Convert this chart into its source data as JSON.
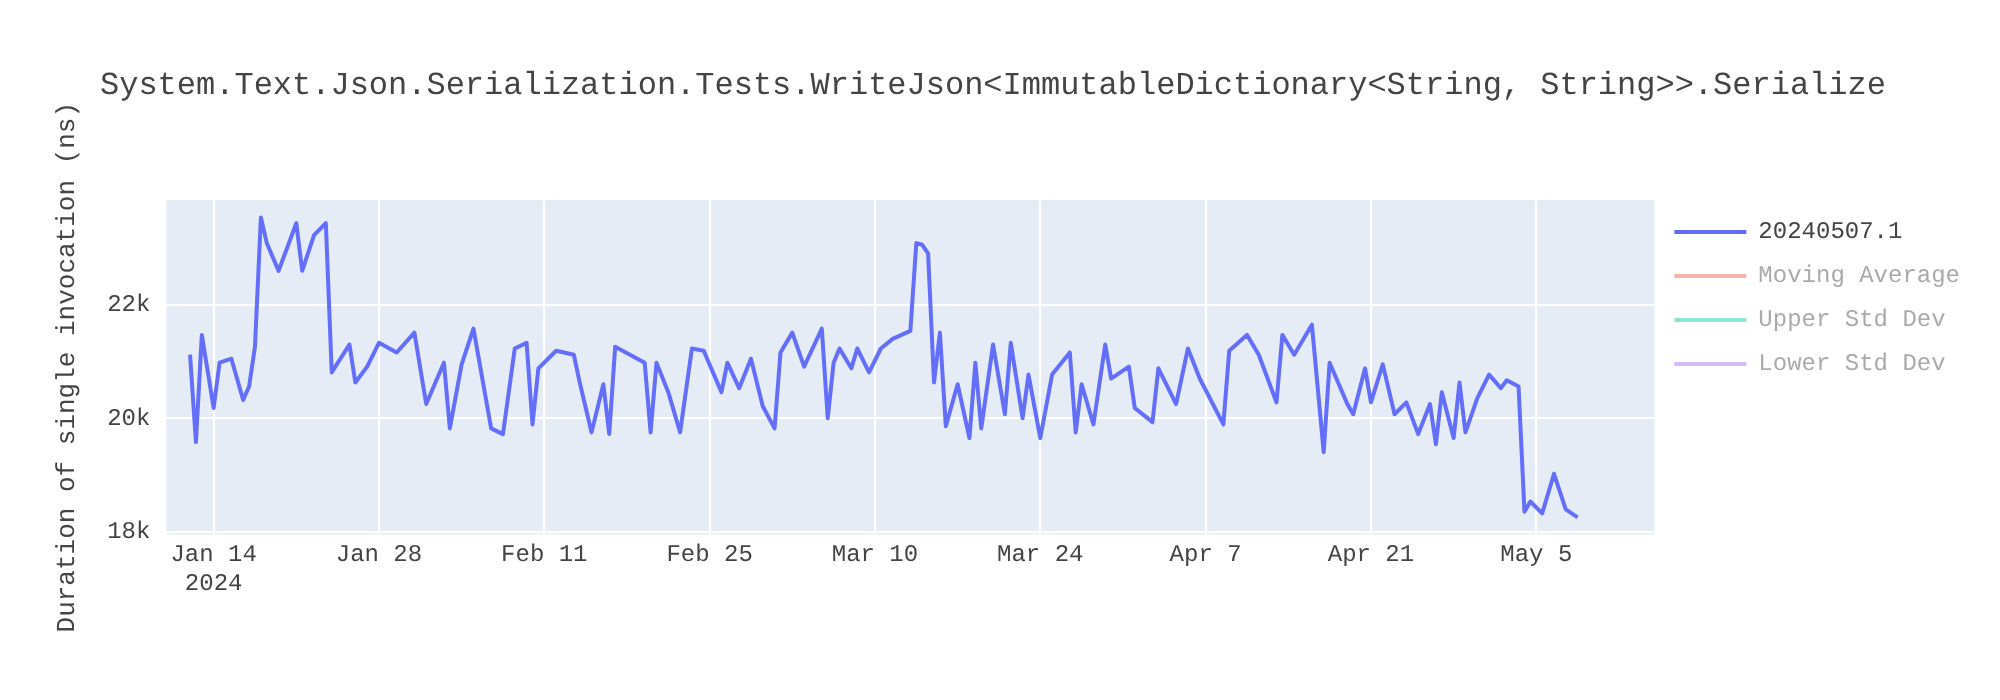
{
  "chart_data": {
    "type": "line",
    "title": "System.Text.Json.Serialization.Tests.WriteJson<ImmutableDictionary<String, String>>.Serialize",
    "ylabel": "Duration of single invocation (ns)",
    "xlim": [
      "2024-01-10",
      "2024-05-15"
    ],
    "xticks": [
      {
        "value": "2024-01-14",
        "label": "Jan 14\n2024"
      },
      {
        "value": "2024-01-28",
        "label": "Jan 28"
      },
      {
        "value": "2024-02-11",
        "label": "Feb 11"
      },
      {
        "value": "2024-02-25",
        "label": "Feb 25"
      },
      {
        "value": "2024-03-10",
        "label": "Mar 10"
      },
      {
        "value": "2024-03-24",
        "label": "Mar 24"
      },
      {
        "value": "2024-04-07",
        "label": "Apr 7"
      },
      {
        "value": "2024-04-21",
        "label": "Apr 21"
      },
      {
        "value": "2024-05-05",
        "label": "May 5"
      }
    ],
    "ylim": [
      17950,
      23850
    ],
    "yticks": [
      {
        "value": 18000,
        "label": "18k"
      },
      {
        "value": 20000,
        "label": "20k"
      },
      {
        "value": 22000,
        "label": "22k"
      }
    ],
    "grid": true,
    "legend": "top right",
    "line_style": "solid",
    "series": [
      {
        "name": "20240507.1",
        "color": "#636efa",
        "x": [
          "2024-01-12T00:00",
          "2024-01-12T12:00",
          "2024-01-13T00:00",
          "2024-01-14T00:00",
          "2024-01-14T12:00",
          "2024-01-15T12:00",
          "2024-01-16T12:00",
          "2024-01-17T00:00",
          "2024-01-17T12:00",
          "2024-01-18T00:00",
          "2024-01-18T12:00",
          "2024-01-19T12:00",
          "2024-01-21T00:00",
          "2024-01-21T12:00",
          "2024-01-22T12:00",
          "2024-01-23T12:00",
          "2024-01-24T00:00",
          "2024-01-25T12:00",
          "2024-01-26T00:00",
          "2024-01-27T00:00",
          "2024-01-28T00:00",
          "2024-01-29T12:00",
          "2024-01-31T00:00",
          "2024-02-01T00:00",
          "2024-02-02T12:00",
          "2024-02-03T00:00",
          "2024-02-04T00:00",
          "2024-02-05T00:00",
          "2024-02-06T12:00",
          "2024-02-07T12:00",
          "2024-02-08T12:00",
          "2024-02-09T12:00",
          "2024-02-10T00:00",
          "2024-02-10T12:00",
          "2024-02-12T00:00",
          "2024-02-13T12:00",
          "2024-02-14T00:00",
          "2024-02-15T00:00",
          "2024-02-16T00:00",
          "2024-02-16T12:00",
          "2024-02-17T00:00",
          "2024-02-19T12:00",
          "2024-02-20T00:00",
          "2024-02-20T12:00",
          "2024-02-21T12:00",
          "2024-02-22T12:00",
          "2024-02-23T12:00",
          "2024-02-24T12:00",
          "2024-02-26T00:00",
          "2024-02-26T12:00",
          "2024-02-27T12:00",
          "2024-02-28T12:00",
          "2024-02-29T12:00",
          "2024-03-01T12:00",
          "2024-03-02T00:00",
          "2024-03-03T00:00",
          "2024-03-04T00:00",
          "2024-03-05T12:00",
          "2024-03-06T00:00",
          "2024-03-06T12:00",
          "2024-03-07T00:00",
          "2024-03-08T00:00",
          "2024-03-08T12:00",
          "2024-03-09T12:00",
          "2024-03-10T12:00",
          "2024-03-11T12:00",
          "2024-03-13T00:00",
          "2024-03-13T12:00",
          "2024-03-14T00:00",
          "2024-03-14T12:00",
          "2024-03-15T00:00",
          "2024-03-15T12:00",
          "2024-03-16T00:00",
          "2024-03-17T00:00",
          "2024-03-18T00:00",
          "2024-03-18T12:00",
          "2024-03-19T00:00",
          "2024-03-20T00:00",
          "2024-03-21T00:00",
          "2024-03-21T12:00",
          "2024-03-22T12:00",
          "2024-03-23T00:00",
          "2024-03-24T00:00",
          "2024-03-25T00:00",
          "2024-03-26T12:00",
          "2024-03-27T00:00",
          "2024-03-27T12:00",
          "2024-03-28T12:00",
          "2024-03-29T12:00",
          "2024-03-30T00:00",
          "2024-03-31T12:00",
          "2024-04-01T00:00",
          "2024-04-02T12:00",
          "2024-04-03T00:00",
          "2024-04-04T12:00",
          "2024-04-05T12:00",
          "2024-04-06T12:00",
          "2024-04-08T12:00",
          "2024-04-09T00:00",
          "2024-04-10T12:00",
          "2024-04-11T12:00",
          "2024-04-13T00:00",
          "2024-04-13T12:00",
          "2024-04-14T12:00",
          "2024-04-16T00:00",
          "2024-04-17T00:00",
          "2024-04-17T12:00",
          "2024-04-19T00:00",
          "2024-04-19T12:00",
          "2024-04-20T12:00",
          "2024-04-21T00:00",
          "2024-04-22T00:00",
          "2024-04-23T00:00",
          "2024-04-24T00:00",
          "2024-04-25T00:00",
          "2024-04-26T00:00",
          "2024-04-26T12:00",
          "2024-04-27T00:00",
          "2024-04-28T00:00",
          "2024-04-28T12:00",
          "2024-04-29T00:00",
          "2024-04-30T00:00",
          "2024-05-01T00:00",
          "2024-05-02T00:00",
          "2024-05-02T12:00",
          "2024-05-03T12:00",
          "2024-05-04T00:00",
          "2024-05-04T12:00",
          "2024-05-05T12:00",
          "2024-05-06T12:00",
          "2024-05-07T12:00",
          "2024-05-08T12:00"
        ],
        "values": [
          21120,
          19580,
          21470,
          20180,
          20980,
          21050,
          20320,
          20560,
          21260,
          23540,
          23090,
          22600,
          23440,
          22600,
          23230,
          23440,
          20810,
          21300,
          20630,
          20910,
          21330,
          21160,
          21510,
          20250,
          20980,
          19820,
          20950,
          21580,
          19820,
          19720,
          21230,
          21330,
          19890,
          20880,
          21190,
          21120,
          20630,
          19750,
          20600,
          19720,
          21260,
          20980,
          19750,
          20980,
          20460,
          19750,
          21230,
          21190,
          20460,
          20980,
          20530,
          21050,
          20210,
          19820,
          21160,
          21510,
          20910,
          21580,
          20000,
          20980,
          21230,
          20880,
          21230,
          20810,
          21230,
          21400,
          21540,
          23090,
          23060,
          22910,
          20630,
          21510,
          19860,
          20600,
          19650,
          20980,
          19820,
          21300,
          20070,
          21330,
          20000,
          20770,
          19650,
          20770,
          21160,
          19750,
          20600,
          19890,
          21300,
          20700,
          20910,
          20180,
          19930,
          20880,
          20250,
          21230,
          20700,
          19890,
          21190,
          21470,
          21120,
          20280,
          21470,
          21120,
          21650,
          19400,
          20980,
          20250,
          20070,
          20880,
          20280,
          20950,
          20070,
          20280,
          19720,
          20250,
          19540,
          20460,
          19650,
          20630,
          19750,
          20350,
          20770,
          20530,
          20670,
          20560,
          18350,
          18530,
          18320,
          19020,
          18390,
          18250
        ]
      },
      {
        "name": "Moving Average",
        "color": "#ef553b"
      },
      {
        "name": "Upper Std Dev",
        "color": "#00cc96"
      },
      {
        "name": "Lower Std Dev",
        "color": "#ab63fa"
      }
    ]
  }
}
